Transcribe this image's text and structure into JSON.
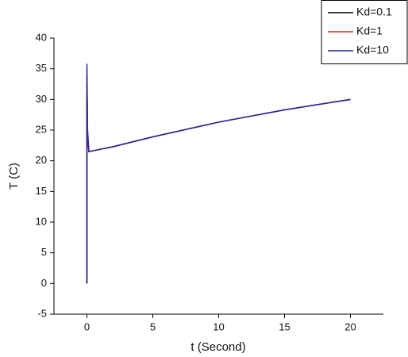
{
  "chart_data": {
    "type": "line",
    "x_label": "t (Second)",
    "y_label": "T (C)",
    "x": [
      0,
      0.001,
      0.05,
      0.15,
      2,
      5,
      10,
      15,
      20
    ],
    "series": [
      {
        "name": "Kd=0.1",
        "color": "#000000",
        "values": [
          0,
          32.5,
          24,
          21.5,
          22.3,
          23.9,
          26.3,
          28.3,
          30
        ]
      },
      {
        "name": "Kd=1",
        "color": "#e02020",
        "values": [
          0,
          34,
          24.5,
          21.5,
          22.3,
          23.9,
          26.3,
          28.3,
          30
        ]
      },
      {
        "name": "Kd=10",
        "color": "#2828a0",
        "values": [
          0,
          35.8,
          25,
          21.5,
          22.3,
          23.9,
          26.3,
          28.3,
          30
        ]
      }
    ],
    "xlim": [
      -2.5,
      22.5
    ],
    "xticks": [
      0,
      5,
      10,
      15,
      20
    ],
    "ylim": [
      -5,
      40
    ],
    "yticks": [
      -5,
      0,
      5,
      10,
      15,
      20,
      25,
      30,
      35,
      40
    ],
    "legend": "top-right"
  }
}
